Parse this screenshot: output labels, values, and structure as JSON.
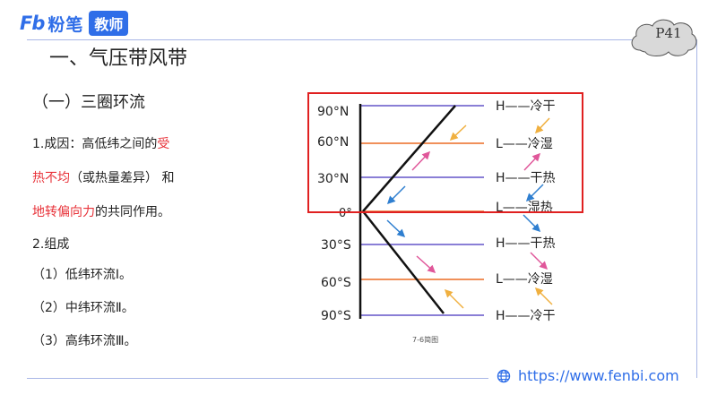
{
  "header": {
    "logo_mark": "Fb",
    "logo_text": "粉笔",
    "logo_badge": "教师",
    "page_badge": "P41"
  },
  "title": "一、气压带风带",
  "subtitle": "（一）三圈环流",
  "body": {
    "line1_prefix": "1.成因：高低纬之间的",
    "line1_red": "受",
    "line2_red": "热不均",
    "line2_rest": "（或热量差异） 和",
    "line3_red": "地转偏向力",
    "line3_rest": "的共同作用。",
    "line4": "2.组成",
    "line5": "（1）低纬环流Ⅰ。",
    "line6": "（2）中纬环流Ⅱ。",
    "line7": "（3）高纬环流Ⅲ。"
  },
  "diagram": {
    "lat_labels": [
      "90°N",
      "60°N",
      "30°N",
      "0°",
      "30°S",
      "60°S",
      "90°S"
    ],
    "belt_labels": [
      "H——冷干",
      "L——冷湿",
      "H——干热",
      "L——湿热",
      "H——干热",
      "L——冷湿",
      "H——冷干"
    ],
    "caption": "7-6简图",
    "colors": {
      "purple_line": "#8a7fd6",
      "orange_line": "#f0905a",
      "arrow_orange": "#f0b040",
      "arrow_pink": "#e0579a",
      "arrow_blue": "#2f7fd0",
      "highlight_box": "#e02020"
    }
  },
  "footer": {
    "url": "https://www.fenbi.com"
  }
}
